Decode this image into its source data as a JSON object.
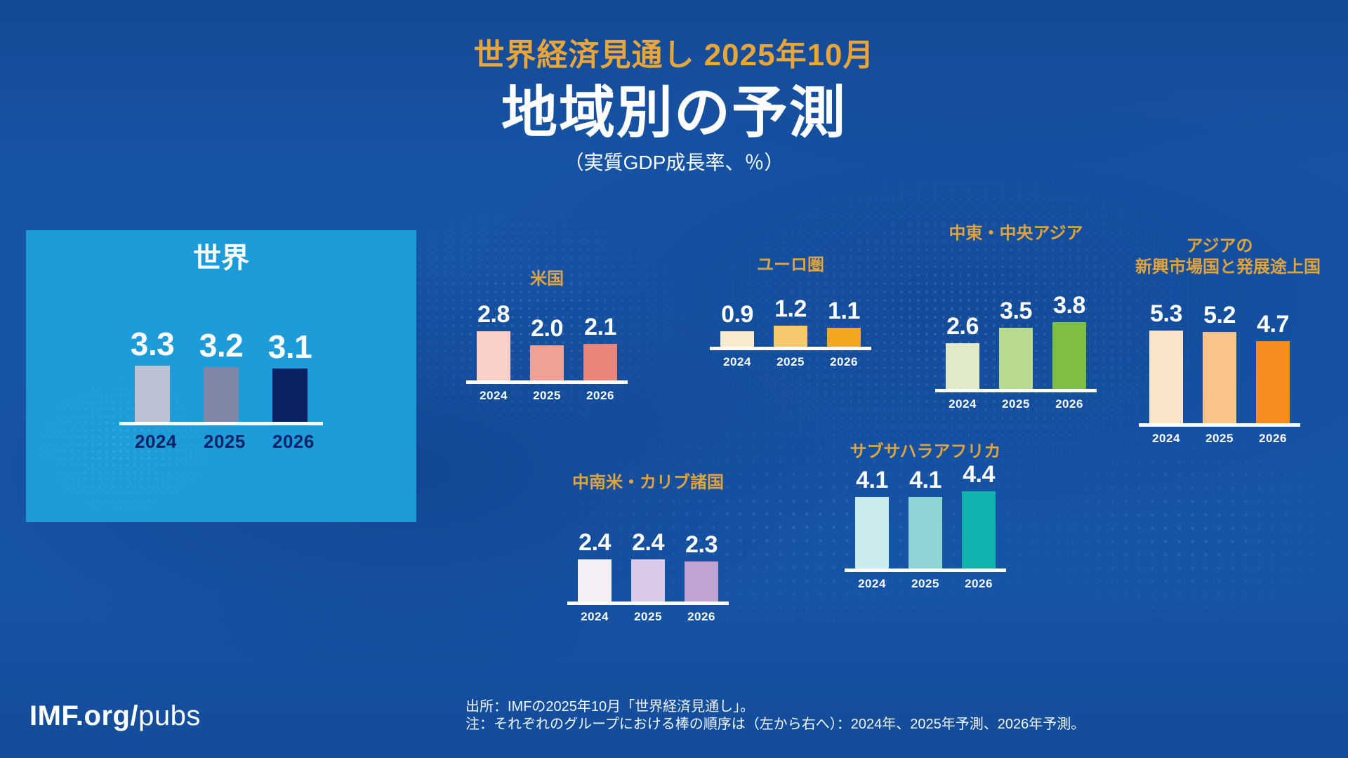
{
  "header": {
    "kicker": "世界経済見通し 2025年10月",
    "title": "地域別の予測",
    "subtitle": "（実質GDP成長率、％）"
  },
  "footer": {
    "brand_bold": "IMF.org/",
    "brand_light": "pubs",
    "source_line": "出所：IMFの2025年10月「世界経済見通し」。",
    "note_line": "注：それぞれのグループにおける棒の順序は（左から右へ）：2024年、2025年予測、2026年予測。"
  },
  "accent": {
    "gold": "#E0A43E",
    "background_blue": "#1654A6",
    "world_panel_blue": "#1E9CD9",
    "axis_white": "#FFFFFF"
  },
  "chart_data": [
    {
      "id": "world",
      "type": "bar",
      "title": "世界",
      "title_lines": [
        "世界"
      ],
      "categories": [
        "2024",
        "2025",
        "2026"
      ],
      "values": [
        3.3,
        3.2,
        3.1
      ],
      "bar_colors": [
        "#BBC1D3",
        "#7E87A7",
        "#0C2264"
      ],
      "value_label_color": "#FFFFFF",
      "category_label_color": "#0A2264",
      "panel_bg": "#1E9CD9",
      "ylim": [
        0,
        6
      ],
      "grid": false,
      "value_labels": true
    },
    {
      "id": "us",
      "type": "bar",
      "title": "米国",
      "title_lines": [
        "米国"
      ],
      "categories": [
        "2024",
        "2025",
        "2026"
      ],
      "values": [
        2.8,
        2.0,
        2.1
      ],
      "bar_colors": [
        "#F9CFC9",
        "#F1A096",
        "#EC8579"
      ],
      "value_label_color": "#FFFFFF",
      "category_label_color": "#FFFFFF",
      "ylim": [
        0,
        6
      ],
      "grid": false,
      "value_labels": true
    },
    {
      "id": "euro",
      "type": "bar",
      "title": "ユーロ圏",
      "title_lines": [
        "ユーロ圏"
      ],
      "categories": [
        "2024",
        "2025",
        "2026"
      ],
      "values": [
        0.9,
        1.2,
        1.1
      ],
      "bar_colors": [
        "#F9ECCD",
        "#F6C96F",
        "#F1A71F"
      ],
      "value_label_color": "#FFFFFF",
      "category_label_color": "#FFFFFF",
      "ylim": [
        0,
        6
      ],
      "grid": false,
      "value_labels": true
    },
    {
      "id": "mideast",
      "type": "bar",
      "title": "中東・中央アジア",
      "title_lines": [
        "中東・中央アジア"
      ],
      "categories": [
        "2024",
        "2025",
        "2026"
      ],
      "values": [
        2.6,
        3.5,
        3.8
      ],
      "bar_colors": [
        "#DFEAC9",
        "#B9D98E",
        "#7DBE43"
      ],
      "value_label_color": "#FFFFFF",
      "category_label_color": "#FFFFFF",
      "ylim": [
        0,
        6
      ],
      "grid": false,
      "value_labels": true
    },
    {
      "id": "asia",
      "type": "bar",
      "title": "アジアの新興市場国と発展途上国",
      "title_lines": [
        "アジアの",
        "新興市場国と発展途上国"
      ],
      "categories": [
        "2024",
        "2025",
        "2026"
      ],
      "values": [
        5.3,
        5.2,
        4.7
      ],
      "bar_colors": [
        "#FBE5C9",
        "#F9C488",
        "#F78D20"
      ],
      "value_label_color": "#FFFFFF",
      "category_label_color": "#FFFFFF",
      "ylim": [
        0,
        6
      ],
      "grid": false,
      "value_labels": true
    },
    {
      "id": "latam",
      "type": "bar",
      "title": "中南米・カリブ諸国",
      "title_lines": [
        "中南米・カリブ諸国"
      ],
      "categories": [
        "2024",
        "2025",
        "2026"
      ],
      "values": [
        2.4,
        2.4,
        2.3
      ],
      "bar_colors": [
        "#F5EFF7",
        "#DBCAE7",
        "#C0A2D5"
      ],
      "value_label_color": "#FFFFFF",
      "category_label_color": "#FFFFFF",
      "ylim": [
        0,
        6
      ],
      "grid": false,
      "value_labels": true
    },
    {
      "id": "africa",
      "type": "bar",
      "title": "サブサハラアフリカ",
      "title_lines": [
        "サブサハラアフリカ"
      ],
      "categories": [
        "2024",
        "2025",
        "2026"
      ],
      "values": [
        4.1,
        4.1,
        4.4
      ],
      "bar_colors": [
        "#CBEBEC",
        "#8FD5D6",
        "#12B3AE"
      ],
      "value_label_color": "#FFFFFF",
      "category_label_color": "#FFFFFF",
      "ylim": [
        0,
        6
      ],
      "grid": false,
      "value_labels": true
    }
  ]
}
